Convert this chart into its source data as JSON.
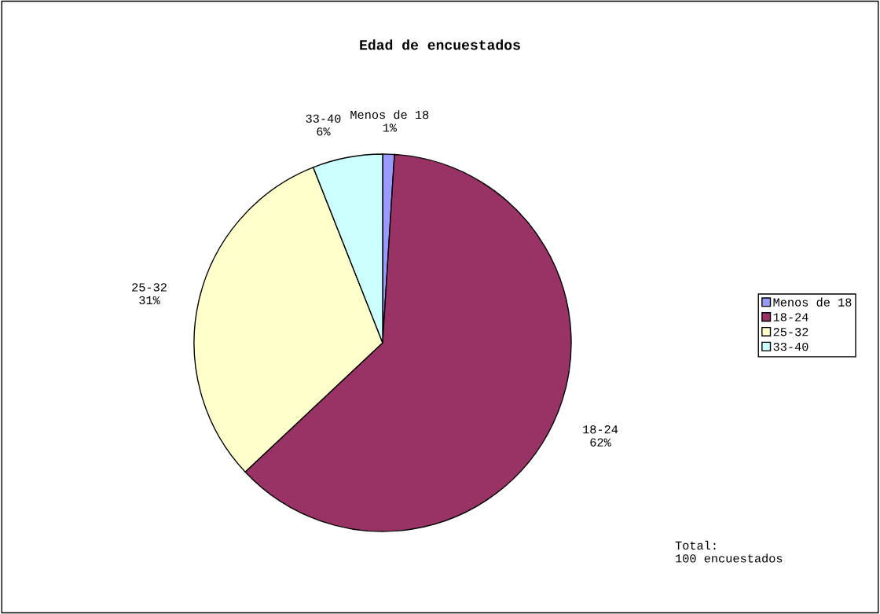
{
  "chart_data": {
    "type": "pie",
    "title": "Edad de encuestados",
    "categories": [
      "Menos de 18",
      "18-24",
      "25-32",
      "33-40"
    ],
    "values": [
      1,
      62,
      31,
      6
    ],
    "value_labels": [
      "1%",
      "62%",
      "31%",
      "6%"
    ],
    "colors": [
      "#9999ff",
      "#993366",
      "#ffffcc",
      "#ccffff"
    ],
    "legend": "right",
    "annotations": [
      "Total:\n100 encuestados"
    ]
  }
}
